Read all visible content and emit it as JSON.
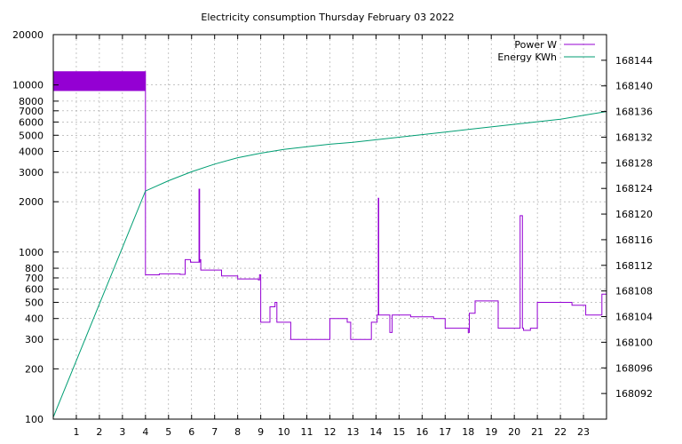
{
  "chart_data": {
    "type": "line",
    "title": "Electricity consumption Thursday February 03 2022",
    "xlabel": "",
    "ylabel": "",
    "y2label": "",
    "grid": true,
    "legend_position": "top-right",
    "xlim": [
      0,
      24
    ],
    "x_ticks": [
      1,
      2,
      3,
      4,
      5,
      6,
      7,
      8,
      9,
      10,
      11,
      12,
      13,
      14,
      15,
      16,
      17,
      18,
      19,
      20,
      21,
      22,
      23
    ],
    "ylim": [
      100,
      20000
    ],
    "y_scale": "log",
    "y_ticks": [
      100,
      200,
      300,
      400,
      500,
      600,
      700,
      800,
      1000,
      2000,
      3000,
      4000,
      5000,
      6000,
      7000,
      8000,
      10000,
      20000
    ],
    "y2lim": [
      168088,
      168148
    ],
    "y2_ticks": [
      168092,
      168096,
      168100,
      168104,
      168108,
      168112,
      168116,
      168120,
      168124,
      168128,
      168132,
      168136,
      168140,
      168144
    ],
    "series": [
      {
        "name": "Power W",
        "color": "#9400d3",
        "axis": "left",
        "style": "steps",
        "x": [
          0.0,
          4.0,
          4.02,
          4.6,
          5.0,
          5.5,
          5.72,
          5.95,
          6.3,
          6.32,
          6.35,
          6.36,
          6.4,
          6.55,
          7.0,
          7.3,
          7.7,
          8.0,
          8.6,
          8.9,
          8.95,
          9.0,
          9.1,
          9.4,
          9.5,
          9.62,
          9.7,
          10.05,
          10.3,
          11.0,
          11.5,
          12.0,
          12.5,
          12.75,
          12.9,
          13.3,
          13.8,
          14.05,
          14.1,
          14.12,
          14.15,
          14.2,
          14.6,
          14.7,
          14.9,
          15.0,
          15.5,
          16.0,
          16.5,
          17.0,
          17.9,
          18.0,
          18.05,
          18.3,
          18.5,
          19.0,
          19.3,
          19.5,
          20.0,
          20.2,
          20.25,
          20.35,
          20.4,
          20.7,
          21.0,
          21.5,
          21.8,
          22.5,
          23.0,
          23.1,
          23.5,
          23.8,
          24.0
        ],
        "y": [
          12000,
          730,
          730,
          740,
          740,
          735,
          900,
          870,
          870,
          2380,
          870,
          900,
          780,
          780,
          780,
          720,
          720,
          690,
          690,
          680,
          730,
          380,
          380,
          470,
          470,
          500,
          380,
          380,
          300,
          300,
          300,
          400,
          400,
          380,
          300,
          300,
          380,
          420,
          2100,
          420,
          420,
          420,
          330,
          420,
          420,
          420,
          410,
          410,
          400,
          350,
          350,
          330,
          430,
          510,
          510,
          510,
          350,
          350,
          350,
          350,
          1650,
          350,
          340,
          350,
          500,
          500,
          500,
          480,
          480,
          420,
          420,
          560,
          470
        ]
      },
      {
        "name": "Energy KWh",
        "color": "#009e73",
        "axis": "right",
        "style": "line",
        "x": [
          0,
          4,
          5,
          6,
          7,
          8,
          9,
          10,
          11,
          12,
          13,
          14,
          15,
          16,
          17,
          18,
          19,
          20,
          21,
          22,
          23,
          24
        ],
        "y": [
          168088.3,
          168123.6,
          168125.2,
          168126.6,
          168127.8,
          168128.8,
          168129.5,
          168130.1,
          168130.5,
          168130.9,
          168131.2,
          168131.6,
          168132.0,
          168132.4,
          168132.8,
          168133.2,
          168133.6,
          168134.0,
          168134.4,
          168134.8,
          168135.4,
          168136.0
        ]
      }
    ]
  }
}
